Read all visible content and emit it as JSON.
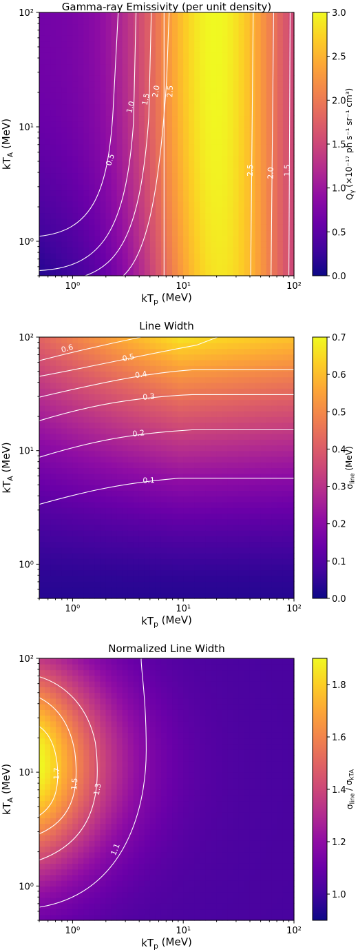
{
  "colormap": [
    "#0d0887",
    "#41049d",
    "#6a00a8",
    "#8f0da4",
    "#b12a90",
    "#cc4778",
    "#e16462",
    "#f2844b",
    "#fca636",
    "#fcce25",
    "#f0f921"
  ],
  "contour_color": "#ffffff",
  "chart_data": [
    {
      "type": "heatmap",
      "id": "emissivity",
      "title": "Gamma-ray Emissivity (per unit density)",
      "xlabel": "kT_p (MeV)",
      "ylabel": "kT_A (MeV)",
      "colorbar_label": "Q_γ (×10⁻¹⁷ ph s⁻¹ sr⁻¹ cm³)",
      "x_scale": "log",
      "y_scale": "log",
      "xlim": [
        0.5,
        100
      ],
      "ylim": [
        0.5,
        100
      ],
      "clim": [
        0.0,
        3.0
      ],
      "x_ticks": [
        "10⁰",
        "10¹",
        "10²"
      ],
      "y_ticks": [
        "10⁰",
        "10¹",
        "10²"
      ],
      "colorbar_ticks": [
        "0.0",
        "0.5",
        "1.0",
        "1.5",
        "2.0",
        "2.5",
        "3.0"
      ],
      "contour_levels": [
        "0.5",
        "1.0",
        "1.5",
        "2.0",
        "2.5",
        "2.5",
        "2.0",
        "1.5"
      ]
    },
    {
      "type": "heatmap",
      "id": "line_width",
      "title": "Line Width",
      "xlabel": "kT_p (MeV)",
      "ylabel": "kT_A (MeV)",
      "colorbar_label": "σ_line (MeV)",
      "x_scale": "log",
      "y_scale": "log",
      "xlim": [
        0.5,
        100
      ],
      "ylim": [
        0.5,
        100
      ],
      "clim": [
        0.0,
        0.7
      ],
      "x_ticks": [
        "10⁰",
        "10¹",
        "10²"
      ],
      "y_ticks": [
        "10⁰",
        "10¹",
        "10²"
      ],
      "colorbar_ticks": [
        "0.0",
        "0.1",
        "0.2",
        "0.3",
        "0.4",
        "0.5",
        "0.6",
        "0.7"
      ],
      "contour_levels": [
        "0.1",
        "0.2",
        "0.3",
        "0.4",
        "0.5",
        "0.6"
      ]
    },
    {
      "type": "heatmap",
      "id": "normalized_line_width",
      "title": "Normalized Line Width",
      "xlabel": "kT_p (MeV)",
      "ylabel": "kT_A (MeV)",
      "colorbar_label": "σ_line / σ_kTA",
      "x_scale": "log",
      "y_scale": "log",
      "xlim": [
        0.5,
        100
      ],
      "ylim": [
        0.5,
        100
      ],
      "clim": [
        0.9,
        1.9
      ],
      "x_ticks": [
        "10⁰",
        "10¹",
        "10²"
      ],
      "y_ticks": [
        "10⁰",
        "10¹",
        "10²"
      ],
      "colorbar_ticks": [
        "1.0",
        "1.2",
        "1.4",
        "1.6",
        "1.8"
      ],
      "contour_levels": [
        "1.1",
        "1.3",
        "1.5",
        "1.7"
      ]
    }
  ]
}
